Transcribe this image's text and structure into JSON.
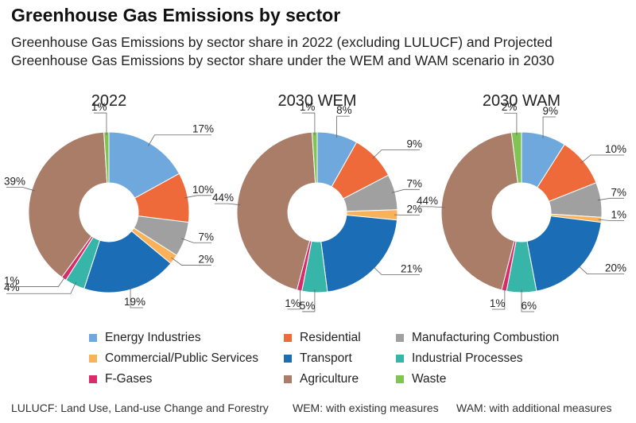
{
  "header": {
    "title": "Greenhouse Gas Emissions by sector",
    "subtitle": "Greenhouse Gas Emissions by sector share in 2022 (excluding LULUCF) and Projected Greenhouse Gas Emissions by sector share under the WEM and WAM scenario in 2030"
  },
  "chart_data": [
    {
      "type": "pie",
      "title": "2022",
      "categories": [
        "Energy Industries",
        "Residential",
        "Manufacturing Combustion",
        "Commercial/Public Services",
        "Transport",
        "Industrial Processes",
        "F-Gases",
        "Agriculture",
        "Waste"
      ],
      "values": [
        17,
        10,
        7,
        2,
        19,
        4,
        1,
        39,
        1
      ],
      "labels": [
        "17%",
        "10%",
        "7%",
        "2%",
        "19%",
        "4%",
        "1%",
        "39%",
        "1%"
      ]
    },
    {
      "type": "pie",
      "title": "2030 WEM",
      "categories": [
        "Energy Industries",
        "Residential",
        "Manufacturing Combustion",
        "Commercial/Public Services",
        "Transport",
        "Industrial Processes",
        "F-Gases",
        "Agriculture",
        "Waste"
      ],
      "values": [
        8,
        9,
        7,
        2,
        21,
        5,
        1,
        44,
        1
      ],
      "labels": [
        "8%",
        "9%",
        "7%",
        "2%",
        "21%",
        "5%",
        "1%",
        "44%",
        "1%"
      ]
    },
    {
      "type": "pie",
      "title": "2030 WAM",
      "categories": [
        "Energy Industries",
        "Residential",
        "Manufacturing Combustion",
        "Commercial/Public Services",
        "Transport",
        "Industrial Processes",
        "F-Gases",
        "Agriculture",
        "Waste"
      ],
      "values": [
        9,
        10,
        7,
        1,
        20,
        6,
        1,
        44,
        2
      ],
      "labels": [
        "9%",
        "10%",
        "7%",
        "1%",
        "20%",
        "6%",
        "1%",
        "44%",
        "2%"
      ]
    }
  ],
  "legend": [
    {
      "label": "Energy Industries",
      "color": "#6FA8DC"
    },
    {
      "label": "Residential",
      "color": "#EF6A3A"
    },
    {
      "label": "Manufacturing Combustion",
      "color": "#A0A0A0"
    },
    {
      "label": "Commercial/Public Services",
      "color": "#F9B25A"
    },
    {
      "label": "Transport",
      "color": "#1B6DB5"
    },
    {
      "label": "Industrial Processes",
      "color": "#36B5A8"
    },
    {
      "label": "F-Gases",
      "color": "#DA2C6A"
    },
    {
      "label": "Agriculture",
      "color": "#A97D68"
    },
    {
      "label": "Waste",
      "color": "#82C454"
    }
  ],
  "footnotes": {
    "lulucf": "LULUCF: Land Use, Land-use Change and Forestry",
    "wem": "WEM: with existing measures",
    "wam": "WAM: with additional measures"
  }
}
